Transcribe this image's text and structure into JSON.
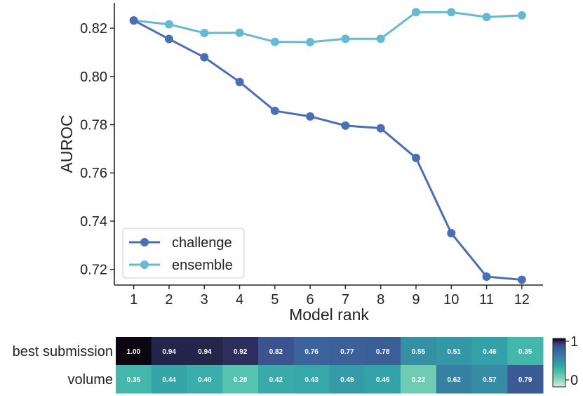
{
  "chart_data": [
    {
      "type": "line",
      "xlabel": "Model rank",
      "ylabel": "AUROC",
      "x": [
        1,
        2,
        3,
        4,
        5,
        6,
        7,
        8,
        9,
        10,
        11,
        12
      ],
      "x_tick_labels": [
        "1",
        "2",
        "3",
        "4",
        "5",
        "6",
        "7",
        "8",
        "9",
        "10",
        "11",
        "12"
      ],
      "y_ticks": [
        0.72,
        0.74,
        0.76,
        0.78,
        0.8,
        0.82
      ],
      "y_tick_labels": [
        "0.72",
        "0.74",
        "0.76",
        "0.78",
        "0.80",
        "0.82"
      ],
      "ylim": [
        0.7135,
        0.8305
      ],
      "xlim": [
        0.45,
        12.6
      ],
      "legend_position": "lower-left",
      "series": [
        {
          "name": "challenge",
          "color": "#4a6fb5",
          "values": [
            0.8232,
            0.8155,
            0.8079,
            0.7977,
            0.7857,
            0.7834,
            0.7796,
            0.7785,
            0.7662,
            0.735,
            0.717,
            0.7157
          ]
        },
        {
          "name": "ensemble",
          "color": "#66b8d3",
          "values": [
            0.8232,
            0.8216,
            0.818,
            0.8181,
            0.8143,
            0.8142,
            0.8156,
            0.8156,
            0.8266,
            0.8266,
            0.8246,
            0.8253
          ]
        }
      ]
    },
    {
      "type": "heatmap",
      "rows": [
        "best submission",
        "volume"
      ],
      "columns": [
        "1",
        "2",
        "3",
        "4",
        "5",
        "6",
        "7",
        "8",
        "9",
        "10",
        "11",
        "12"
      ],
      "values": [
        [
          1.0,
          0.94,
          0.94,
          0.92,
          0.82,
          0.76,
          0.77,
          0.78,
          0.55,
          0.51,
          0.46,
          0.35
        ],
        [
          0.35,
          0.44,
          0.4,
          0.28,
          0.42,
          0.43,
          0.49,
          0.45,
          0.22,
          0.62,
          0.57,
          0.79
        ]
      ],
      "cell_labels": [
        [
          "1.00",
          "0.94",
          "0.94",
          "0.92",
          "0.82",
          "0.76",
          "0.77",
          "0.78",
          "0.55",
          "0.51",
          "0.46",
          "0.35"
        ],
        [
          "0.35",
          "0.44",
          "0.40",
          "0.28",
          "0.42",
          "0.43",
          "0.49",
          "0.45",
          "0.22",
          "0.62",
          "0.57",
          "0.79"
        ]
      ],
      "colormap": "mako_r",
      "colorbar_ticks": [
        0,
        1
      ],
      "colorbar_tick_labels": [
        "0",
        "1"
      ]
    }
  ]
}
